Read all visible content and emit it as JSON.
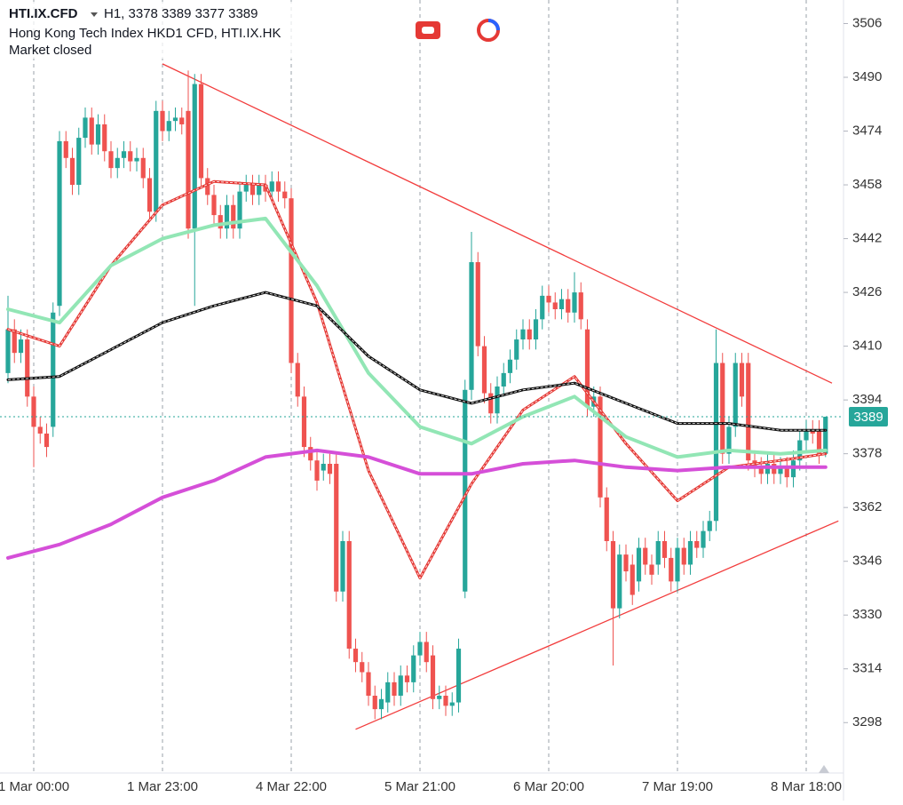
{
  "chart_data": {
    "type": "candlestick",
    "symbol": "HTI.IX.CFD",
    "ohlc_text": "H1, 3378 3389 3377 3389",
    "subtitle": "Hong Kong Tech Index HKD1 CFD, HTI.IX.HK",
    "status": "Market closed",
    "up_color": "#26a69a",
    "down_color": "#ef5350",
    "ylim": [
      3283,
      3513
    ],
    "yticks": [
      3298,
      3314,
      3330,
      3346,
      3362,
      3378,
      3394,
      3410,
      3426,
      3442,
      3458,
      3474,
      3490,
      3506
    ],
    "grid": true,
    "last_price": 3389,
    "categories": [
      null,
      null,
      null,
      null,
      "1 Mar 00:00",
      null,
      null,
      null,
      null,
      null,
      null,
      null,
      null,
      null,
      null,
      null,
      null,
      null,
      null,
      null,
      null,
      null,
      null,
      null,
      "1 Mar 23:00",
      null,
      null,
      null,
      null,
      null,
      null,
      null,
      null,
      null,
      null,
      null,
      null,
      null,
      null,
      null,
      null,
      null,
      null,
      null,
      "4 Mar 22:00",
      null,
      null,
      null,
      null,
      null,
      null,
      null,
      null,
      null,
      null,
      null,
      null,
      null,
      null,
      null,
      null,
      null,
      null,
      null,
      "5 Mar 21:00",
      null,
      null,
      null,
      null,
      null,
      null,
      null,
      null,
      null,
      null,
      null,
      null,
      null,
      null,
      null,
      null,
      null,
      null,
      null,
      "6 Mar 20:00",
      null,
      null,
      null,
      null,
      null,
      null,
      null,
      null,
      null,
      null,
      null,
      null,
      null,
      null,
      null,
      null,
      null,
      null,
      null,
      "7 Mar 19:00",
      null,
      null,
      null,
      null,
      null,
      null,
      null,
      null,
      null,
      null,
      null,
      null,
      null,
      null,
      null,
      null,
      null,
      null,
      null,
      "8 Mar 18:00",
      null,
      null,
      null
    ],
    "open": [
      3402,
      3415,
      3408,
      3412,
      3395,
      3386,
      3384,
      3386,
      3422,
      3471,
      3466,
      3458,
      3472,
      3478,
      3470,
      3476,
      3468,
      3463,
      3466,
      3468,
      3465,
      3466,
      3460,
      3450,
      3480,
      3474,
      3477,
      3478,
      3480,
      3445,
      3488,
      3460,
      3455,
      3449,
      3445,
      3452,
      3445,
      3456,
      3458,
      3455,
      3458,
      3456,
      3459,
      3456,
      3454,
      3405,
      3395,
      3380,
      3376,
      3373,
      3375,
      3375,
      3337,
      3352,
      3320,
      3316,
      3313,
      3306,
      3302,
      3304,
      3310,
      3306,
      3312,
      3310,
      3318,
      3322,
      3318,
      3305,
      3306,
      3303,
      3304,
      3337,
      3397,
      3435,
      3410,
      3396,
      3390,
      3398,
      3402,
      3406,
      3412,
      3415,
      3412,
      3418,
      3425,
      3423,
      3421,
      3424,
      3420,
      3426,
      3415,
      3392,
      3395,
      3365,
      3352,
      3332,
      3348,
      3345,
      3340,
      3350,
      3345,
      3345,
      3352,
      3347,
      3340,
      3350,
      3345,
      3352,
      3350,
      3355,
      3358,
      3405,
      3378,
      3386,
      3405,
      3405,
      3376,
      3374,
      3372,
      3375,
      3372,
      3374,
      3371,
      3376,
      3382,
      3385,
      3385,
      3378
    ],
    "high": [
      3425,
      3418,
      3415,
      3415,
      3398,
      3389,
      3387,
      3423,
      3474,
      3474,
      3469,
      3475,
      3481,
      3481,
      3479,
      3479,
      3471,
      3469,
      3471,
      3471,
      3469,
      3469,
      3463,
      3483,
      3483,
      3480,
      3481,
      3481,
      3492,
      3491,
      3491,
      3463,
      3458,
      3452,
      3455,
      3455,
      3459,
      3461,
      3461,
      3461,
      3461,
      3462,
      3462,
      3459,
      3457,
      3408,
      3398,
      3383,
      3379,
      3378,
      3378,
      3378,
      3355,
      3355,
      3323,
      3319,
      3316,
      3309,
      3308,
      3313,
      3313,
      3315,
      3315,
      3321,
      3325,
      3325,
      3321,
      3309,
      3309,
      3307,
      3323,
      3400,
      3444,
      3438,
      3413,
      3399,
      3401,
      3405,
      3409,
      3415,
      3418,
      3418,
      3421,
      3428,
      3428,
      3426,
      3427,
      3427,
      3432,
      3429,
      3418,
      3398,
      3398,
      3368,
      3355,
      3351,
      3351,
      3348,
      3353,
      3353,
      3348,
      3355,
      3355,
      3350,
      3353,
      3353,
      3355,
      3355,
      3358,
      3361,
      3415,
      3408,
      3389,
      3408,
      3408,
      3408,
      3379,
      3377,
      3378,
      3378,
      3377,
      3377,
      3379,
      3385,
      3388,
      3388,
      3388,
      3389
    ],
    "low": [
      3399,
      3405,
      3405,
      3392,
      3374,
      3381,
      3377,
      3383,
      3419,
      3463,
      3455,
      3455,
      3469,
      3467,
      3467,
      3465,
      3460,
      3460,
      3463,
      3462,
      3462,
      3457,
      3447,
      3447,
      3471,
      3471,
      3474,
      3473,
      3442,
      3422,
      3457,
      3452,
      3446,
      3442,
      3442,
      3442,
      3442,
      3453,
      3452,
      3452,
      3453,
      3453,
      3453,
      3451,
      3402,
      3392,
      3377,
      3373,
      3367,
      3370,
      3369,
      3334,
      3334,
      3317,
      3313,
      3310,
      3303,
      3299,
      3299,
      3301,
      3303,
      3303,
      3307,
      3307,
      3315,
      3313,
      3302,
      3302,
      3300,
      3300,
      3301,
      3335,
      3394,
      3407,
      3393,
      3387,
      3387,
      3395,
      3399,
      3403,
      3409,
      3409,
      3409,
      3415,
      3420,
      3418,
      3418,
      3417,
      3417,
      3415,
      3389,
      3389,
      3362,
      3349,
      3315,
      3329,
      3340,
      3333,
      3337,
      3342,
      3339,
      3342,
      3344,
      3337,
      3337,
      3342,
      3342,
      3347,
      3347,
      3352,
      3355,
      3375,
      3375,
      3383,
      3392,
      3373,
      3371,
      3369,
      3369,
      3369,
      3369,
      3368,
      3368,
      3373,
      3379,
      3381,
      3375,
      3377
    ],
    "close": [
      3415,
      3408,
      3412,
      3395,
      3386,
      3384,
      3380,
      3420,
      3471,
      3466,
      3458,
      3472,
      3478,
      3470,
      3476,
      3468,
      3463,
      3466,
      3468,
      3465,
      3466,
      3460,
      3450,
      3480,
      3474,
      3477,
      3478,
      3476,
      3445,
      3488,
      3460,
      3455,
      3449,
      3445,
      3452,
      3445,
      3456,
      3458,
      3455,
      3458,
      3456,
      3459,
      3456,
      3454,
      3405,
      3395,
      3380,
      3376,
      3370,
      3375,
      3372,
      3337,
      3352,
      3320,
      3316,
      3313,
      3306,
      3302,
      3305,
      3310,
      3306,
      3312,
      3310,
      3318,
      3322,
      3316,
      3305,
      3306,
      3303,
      3304,
      3320,
      3397,
      3435,
      3410,
      3396,
      3390,
      3398,
      3402,
      3406,
      3412,
      3415,
      3412,
      3418,
      3425,
      3423,
      3421,
      3424,
      3420,
      3426,
      3418,
      3392,
      3395,
      3365,
      3352,
      3332,
      3348,
      3343,
      3336,
      3350,
      3345,
      3342,
      3352,
      3347,
      3340,
      3350,
      3345,
      3352,
      3350,
      3355,
      3358,
      3405,
      3378,
      3386,
      3405,
      3395,
      3376,
      3374,
      3372,
      3375,
      3372,
      3374,
      3371,
      3376,
      3382,
      3385,
      3384,
      3378,
      3389
    ],
    "line_x": [
      0,
      8,
      16,
      24,
      32,
      40,
      48,
      56,
      64,
      72,
      80,
      88,
      96,
      104,
      112,
      120,
      127
    ],
    "lines": [
      {
        "color": "#e53935",
        "style": "double",
        "values": [
          3415,
          3410,
          3434,
          3452,
          3459,
          3458,
          3423,
          3373,
          3341,
          3369,
          3391,
          3401,
          3381,
          3364,
          3374,
          3376,
          3378
        ]
      },
      {
        "color": "#92e6b5",
        "style": "solid",
        "values": [
          3421,
          3417,
          3434,
          3442,
          3446,
          3448,
          3428,
          3402,
          3386,
          3381,
          3389,
          3395,
          3383,
          3377,
          3379,
          3378,
          3379
        ]
      },
      {
        "color": "#111111",
        "style": "double",
        "values": [
          3400,
          3401,
          3409,
          3417,
          3422,
          3426,
          3422,
          3407,
          3397,
          3393,
          3397,
          3399,
          3393,
          3387,
          3387,
          3385,
          3385
        ]
      },
      {
        "color": "#d54fd8",
        "style": "solid",
        "values": [
          3347,
          3351,
          3357,
          3365,
          3370,
          3377,
          3379,
          3377,
          3372,
          3372,
          3375,
          3376,
          3374,
          3373,
          3374,
          3374,
          3374
        ]
      }
    ],
    "trendlines": [
      {
        "color": "#f23c3c",
        "x": [
          24,
          128
        ],
        "values": [
          3494,
          3399
        ]
      },
      {
        "color": "#f23c3c",
        "x": [
          54,
          129
        ],
        "values": [
          3296,
          3358
        ]
      }
    ]
  }
}
